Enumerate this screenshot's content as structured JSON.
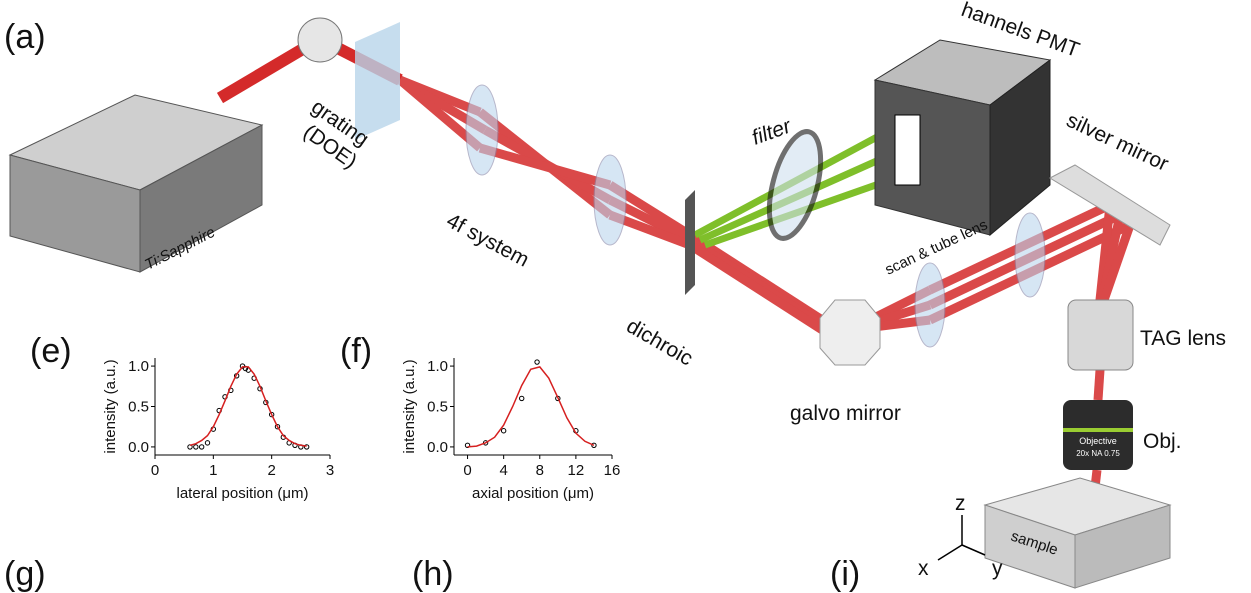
{
  "panels": {
    "a": "(a)",
    "e": "(e)",
    "f": "(f)",
    "g": "(g)",
    "h": "(h)",
    "i": "(i)"
  },
  "diagram": {
    "ti_sapphire": "Ti:Sapphire",
    "grating": "grating",
    "doe": "(DOE)",
    "four_f": "4f system",
    "filter": "filter",
    "pmt": "hannels PMT",
    "silver_mirror": "silver mirror",
    "scan_tube": "scan & tube lens",
    "dichroic": "dichroic",
    "galvo": "galvo mirror",
    "tag": "TAG lens",
    "obj": "Obj.",
    "objective": "Objective",
    "objective_spec": "20x NA 0.75",
    "sample": "sample",
    "axis_z": "z",
    "axis_x": "x",
    "axis_y": "y"
  },
  "chart_data": [
    {
      "type": "scatter",
      "ylabel": "intensity (a.u.)",
      "xlabel": "lateral position (μm)",
      "xlim": [
        0,
        3
      ],
      "xticks": [
        0,
        1,
        2,
        3
      ],
      "ylim": [
        -0.1,
        1.1
      ],
      "yticks": [
        {
          "value": 0,
          "label": "0.0"
        },
        0.5,
        {
          "value": 1,
          "label": "1.0"
        }
      ],
      "series": [
        {
          "type": "scatter",
          "color": "#000000",
          "x": [
            0.6,
            0.7,
            0.8,
            0.9,
            1.0,
            1.1,
            1.2,
            1.3,
            1.4,
            1.5,
            1.55,
            1.6,
            1.7,
            1.8,
            1.9,
            2.0,
            2.1,
            2.2,
            2.3,
            2.4,
            2.5,
            2.6
          ],
          "values": [
            0.0,
            0.0,
            0.0,
            0.05,
            0.22,
            0.45,
            0.62,
            0.7,
            0.88,
            1.0,
            0.97,
            0.95,
            0.85,
            0.72,
            0.55,
            0.4,
            0.25,
            0.12,
            0.05,
            0.02,
            0.0,
            0.0
          ]
        },
        {
          "type": "line",
          "color": "#d62020",
          "x": [
            0.6,
            0.7,
            0.8,
            0.9,
            1.0,
            1.1,
            1.2,
            1.3,
            1.4,
            1.5,
            1.6,
            1.7,
            1.8,
            1.9,
            2.0,
            2.1,
            2.2,
            2.3,
            2.4,
            2.5,
            2.6
          ],
          "values": [
            0.02,
            0.04,
            0.08,
            0.14,
            0.25,
            0.4,
            0.57,
            0.75,
            0.9,
            0.99,
            0.99,
            0.9,
            0.75,
            0.57,
            0.4,
            0.25,
            0.14,
            0.08,
            0.04,
            0.02,
            0.01
          ]
        }
      ]
    },
    {
      "type": "scatter",
      "ylabel": "intensity (a.u.)",
      "xlabel": "axial position (μm)",
      "xlim": [
        -1.5,
        16
      ],
      "xticks": [
        0,
        4,
        8,
        12,
        16
      ],
      "ylim": [
        -0.1,
        1.1
      ],
      "yticks": [
        {
          "value": 0,
          "label": "0.0"
        },
        0.5,
        {
          "value": 1,
          "label": "1.0"
        }
      ],
      "series": [
        {
          "type": "scatter",
          "color": "#000000",
          "x": [
            0,
            2,
            4,
            6,
            7.7,
            10,
            12,
            14
          ],
          "values": [
            0.02,
            0.05,
            0.2,
            0.6,
            1.05,
            0.6,
            0.2,
            0.02
          ]
        },
        {
          "type": "line",
          "color": "#d62020",
          "x": [
            0,
            1,
            2,
            3,
            4,
            5,
            6,
            7,
            8,
            9,
            10,
            11,
            12,
            13,
            14
          ],
          "values": [
            0.0,
            0.01,
            0.05,
            0.12,
            0.27,
            0.5,
            0.76,
            0.96,
            0.99,
            0.85,
            0.61,
            0.36,
            0.17,
            0.07,
            0.02
          ]
        }
      ]
    }
  ]
}
